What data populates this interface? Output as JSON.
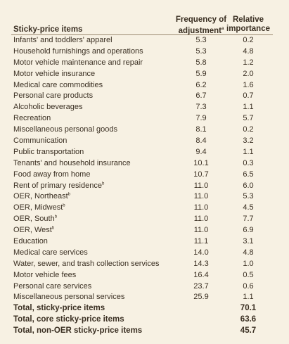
{
  "header": {
    "item_label": "Sticky-price items",
    "freq_line1": "Frequency of",
    "freq_line2": "adjustment",
    "freq_note": "a",
    "rel_line1": "Relative",
    "rel_line2": "importance"
  },
  "rows": [
    {
      "label": "Infants' and toddlers' apparel",
      "note": "",
      "freq": "5.3",
      "rel": "0.2"
    },
    {
      "label": "Household furnishings and operations",
      "note": "",
      "freq": "5.3",
      "rel": "4.8"
    },
    {
      "label": "Motor vehicle maintenance and repair",
      "note": "",
      "freq": "5.8",
      "rel": "1.2"
    },
    {
      "label": "Motor vehicle insurance",
      "note": "",
      "freq": "5.9",
      "rel": "2.0"
    },
    {
      "label": "Medical care commodities",
      "note": "",
      "freq": "6.2",
      "rel": "1.6"
    },
    {
      "label": "Personal care products",
      "note": "",
      "freq": "6.7",
      "rel": "0.7"
    },
    {
      "label": "Alcoholic beverages",
      "note": "",
      "freq": "7.3",
      "rel": "1.1"
    },
    {
      "label": "Recreation",
      "note": "",
      "freq": "7.9",
      "rel": "5.7"
    },
    {
      "label": "Miscellaneous personal goods",
      "note": "",
      "freq": "8.1",
      "rel": "0.2"
    },
    {
      "label": "Communication",
      "note": "",
      "freq": "8.4",
      "rel": "3.2"
    },
    {
      "label": "Public transportation",
      "note": "",
      "freq": "9.4",
      "rel": "1.1"
    },
    {
      "label": "Tenants' and household insurance",
      "note": "",
      "freq": "10.1",
      "rel": "0.3"
    },
    {
      "label": "Food away from home",
      "note": "",
      "freq": "10.7",
      "rel": "6.5"
    },
    {
      "label": "Rent of primary residence",
      "note": "b",
      "freq": "11.0",
      "rel": "6.0"
    },
    {
      "label": "OER, Northeast",
      "note": "b",
      "freq": "11.0",
      "rel": "5.3"
    },
    {
      "label": "OER, Midwest",
      "note": "b",
      "freq": "11.0",
      "rel": "4.5"
    },
    {
      "label": "OER, South",
      "note": "b",
      "freq": "11.0",
      "rel": "7.7"
    },
    {
      "label": "OER, West",
      "note": "b",
      "freq": "11.0",
      "rel": "6.9"
    },
    {
      "label": "Education",
      "note": "",
      "freq": "11.1",
      "rel": "3.1"
    },
    {
      "label": "Medical care services",
      "note": "",
      "freq": "14.0",
      "rel": "4.8"
    },
    {
      "label": "Water, sewer, and trash collection services",
      "note": "",
      "freq": "14.3",
      "rel": "1.0"
    },
    {
      "label": "Motor vehicle fees",
      "note": "",
      "freq": "16.4",
      "rel": "0.5"
    },
    {
      "label": "Personal care services",
      "note": "",
      "freq": "23.7",
      "rel": "0.6"
    },
    {
      "label": "Miscellaneous personal services",
      "note": "",
      "freq": "25.9",
      "rel": "1.1"
    }
  ],
  "totals": [
    {
      "label": "Total, sticky-price items",
      "freq": "",
      "rel": "70.1"
    },
    {
      "label": "Total, core sticky-price items",
      "freq": "",
      "rel": "63.6"
    },
    {
      "label": "Total, non-OER sticky-price items",
      "freq": "",
      "rel": "45.7"
    }
  ]
}
